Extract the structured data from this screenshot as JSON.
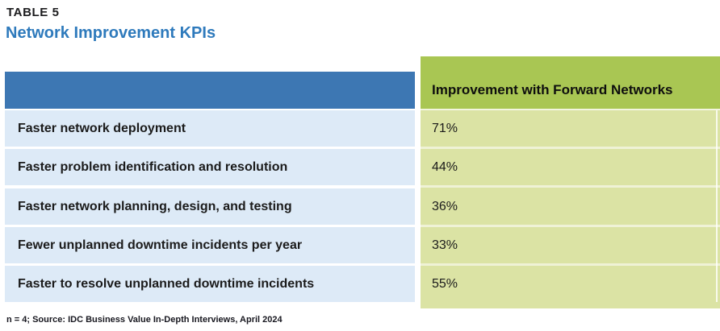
{
  "document": {
    "table_label": "TABLE 5",
    "title": "Network Improvement KPIs",
    "footnote": "n = 4; Source: IDC Business Value In-Depth Interviews, April 2024"
  },
  "table": {
    "kpi_column_header": "",
    "value_column_header": "Improvement with Forward Networks",
    "rows": [
      {
        "kpi": "Faster network deployment",
        "value": "71%"
      },
      {
        "kpi": "Faster problem identification and resolution",
        "value": "44%"
      },
      {
        "kpi": "Faster network planning, design, and testing",
        "value": "36%"
      },
      {
        "kpi": "Fewer unplanned downtime incidents per year",
        "value": "33%"
      },
      {
        "kpi": "Faster to resolve unplanned downtime incidents",
        "value": "55%"
      }
    ]
  },
  "colors": {
    "title_blue": "#2e7abc",
    "header_row_blue": "#3d77b3",
    "kpi_cell_blue": "#ddeaf7",
    "value_header_green": "#a9c653",
    "value_cell_green": "#dbe3a4"
  }
}
